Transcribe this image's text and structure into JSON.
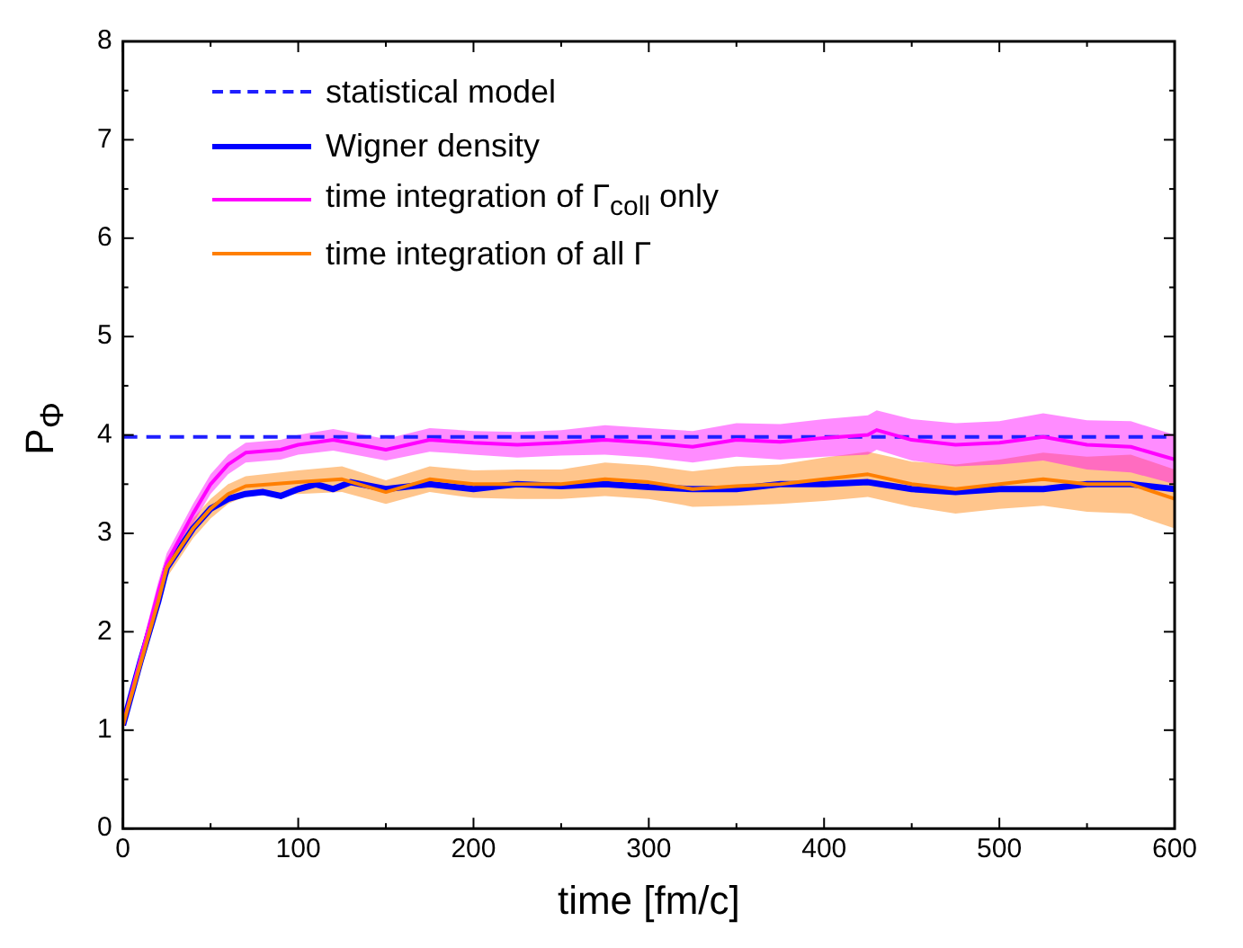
{
  "chart_data": {
    "type": "line",
    "xlabel": "time [fm/c]",
    "ylabel": "P$_{Φ}$",
    "xlim": [
      0,
      600
    ],
    "xticks": [
      0,
      100,
      200,
      300,
      400,
      500,
      600
    ],
    "ylim": [
      0,
      8
    ],
    "yticks": [
      0,
      1,
      2,
      3,
      4,
      5,
      6,
      7,
      8
    ],
    "grid": false,
    "legend": "top left",
    "marker": "none",
    "series": [
      {
        "name": "statistical model",
        "color": "#1f1fff",
        "line_style": "dashed",
        "x": [
          0,
          600
        ],
        "values": [
          3.98,
          3.98
        ]
      },
      {
        "name": "Wigner density",
        "color": "#0000ff",
        "x": [
          0,
          10,
          20,
          25,
          40,
          50,
          60,
          70,
          80,
          90,
          100,
          110,
          120,
          130,
          150,
          175,
          200,
          225,
          250,
          275,
          300,
          325,
          350,
          375,
          400,
          425,
          450,
          475,
          500,
          525,
          550,
          575,
          600
        ],
        "values": [
          1.05,
          1.7,
          2.3,
          2.65,
          3.05,
          3.25,
          3.35,
          3.4,
          3.42,
          3.38,
          3.45,
          3.5,
          3.45,
          3.52,
          3.45,
          3.5,
          3.45,
          3.5,
          3.48,
          3.5,
          3.47,
          3.45,
          3.45,
          3.5,
          3.5,
          3.52,
          3.45,
          3.42,
          3.45,
          3.45,
          3.5,
          3.5,
          3.45
        ]
      },
      {
        "name": "time integration of Γ$_{coll}$ only",
        "color": "#ff00ff",
        "x": [
          0,
          20,
          25,
          40,
          50,
          60,
          70,
          90,
          100,
          120,
          150,
          175,
          200,
          225,
          250,
          275,
          300,
          325,
          350,
          375,
          400,
          425,
          430,
          450,
          475,
          500,
          525,
          550,
          575,
          600
        ],
        "values": [
          1.05,
          2.4,
          2.7,
          3.2,
          3.5,
          3.7,
          3.82,
          3.85,
          3.9,
          3.95,
          3.85,
          3.95,
          3.92,
          3.9,
          3.92,
          3.95,
          3.92,
          3.88,
          3.95,
          3.93,
          3.97,
          4.0,
          4.05,
          3.95,
          3.9,
          3.92,
          3.98,
          3.9,
          3.88,
          3.75
        ],
        "lower": [
          1.0,
          2.3,
          2.6,
          3.1,
          3.4,
          3.6,
          3.72,
          3.75,
          3.8,
          3.84,
          3.74,
          3.83,
          3.8,
          3.77,
          3.79,
          3.8,
          3.77,
          3.72,
          3.78,
          3.75,
          3.78,
          3.8,
          3.85,
          3.74,
          3.68,
          3.7,
          3.74,
          3.65,
          3.62,
          3.5
        ],
        "upper": [
          1.1,
          2.5,
          2.8,
          3.3,
          3.6,
          3.8,
          3.92,
          3.95,
          4.0,
          4.06,
          3.96,
          4.07,
          4.04,
          4.03,
          4.05,
          4.1,
          4.07,
          4.04,
          4.12,
          4.11,
          4.16,
          4.2,
          4.25,
          4.16,
          4.12,
          4.14,
          4.22,
          4.15,
          4.14,
          4.0
        ]
      },
      {
        "name": "time integration of all Γ",
        "color": "#ff7f00",
        "x": [
          0,
          20,
          25,
          40,
          50,
          60,
          70,
          100,
          125,
          150,
          175,
          200,
          225,
          250,
          275,
          300,
          325,
          350,
          375,
          400,
          425,
          450,
          475,
          500,
          525,
          550,
          575,
          600
        ],
        "values": [
          1.05,
          2.3,
          2.65,
          3.05,
          3.25,
          3.4,
          3.48,
          3.52,
          3.55,
          3.42,
          3.55,
          3.5,
          3.5,
          3.5,
          3.55,
          3.52,
          3.45,
          3.48,
          3.5,
          3.55,
          3.6,
          3.5,
          3.45,
          3.5,
          3.55,
          3.5,
          3.5,
          3.35
        ],
        "lower": [
          1.0,
          2.2,
          2.55,
          2.95,
          3.15,
          3.3,
          3.38,
          3.4,
          3.42,
          3.3,
          3.42,
          3.36,
          3.35,
          3.35,
          3.38,
          3.35,
          3.27,
          3.28,
          3.3,
          3.33,
          3.37,
          3.27,
          3.2,
          3.25,
          3.28,
          3.22,
          3.2,
          3.05
        ],
        "upper": [
          1.1,
          2.4,
          2.75,
          3.15,
          3.35,
          3.5,
          3.58,
          3.64,
          3.68,
          3.54,
          3.68,
          3.64,
          3.65,
          3.65,
          3.72,
          3.69,
          3.63,
          3.68,
          3.7,
          3.77,
          3.83,
          3.73,
          3.7,
          3.75,
          3.82,
          3.78,
          3.8,
          3.65
        ]
      }
    ]
  }
}
